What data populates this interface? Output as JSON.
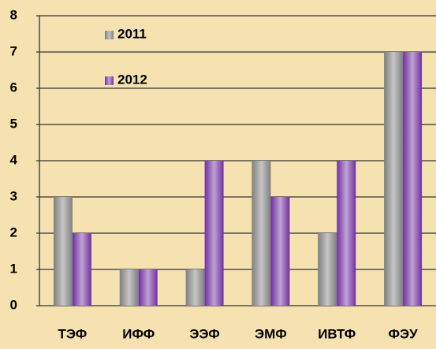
{
  "chart_data": {
    "type": "bar",
    "categories": [
      "ТЭФ",
      "ИФФ",
      "ЭЭФ",
      "ЭМФ",
      "ИВТФ",
      "ФЭУ"
    ],
    "series": [
      {
        "name": "2011",
        "color": "#7f7f7f",
        "values": [
          3,
          1,
          1,
          4,
          2,
          7
        ]
      },
      {
        "name": "2012",
        "color": "#7030a0",
        "values": [
          2,
          1,
          4,
          3,
          4,
          7
        ]
      }
    ],
    "ylim": [
      0,
      8
    ],
    "yticks": [
      0,
      1,
      2,
      3,
      4,
      5,
      6,
      7,
      8
    ],
    "grid": true,
    "legend": "top-left"
  }
}
